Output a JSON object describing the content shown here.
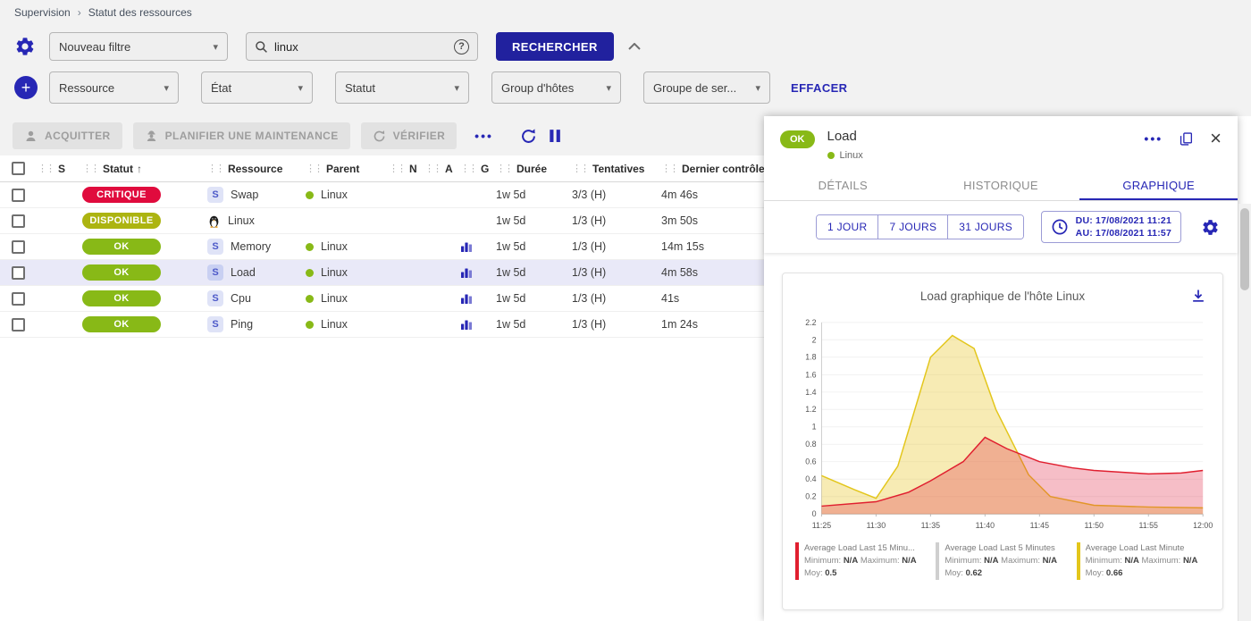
{
  "breadcrumb": {
    "items": [
      "Supervision",
      "Statut des ressources"
    ]
  },
  "filters": {
    "saved_filter": "Nouveau filtre",
    "search_value": "linux",
    "search_button": "RECHERCHER",
    "clear_label": "EFFACER",
    "criteria": [
      "Ressource",
      "État",
      "Statut",
      "Group d'hôtes",
      "Groupe de ser..."
    ]
  },
  "toolbar": {
    "acknowledge": "ACQUITTER",
    "maintenance": "PLANIFIER UNE MAINTENANCE",
    "check": "VÉRIFIER"
  },
  "table": {
    "columns": [
      "S",
      "Statut",
      "Ressource",
      "Parent",
      "N",
      "A",
      "G",
      "Durée",
      "Tentatives",
      "Dernier contrôle"
    ],
    "sorted_column": "Statut",
    "sort_direction": "asc",
    "service_chip": "S",
    "rows": [
      {
        "status": "CRITIQUE",
        "status_color": "#e00b3d",
        "type": "service",
        "resource": "Swap",
        "parent": "Linux",
        "graph": false,
        "duration": "1w 5d",
        "tries": "3/3 (H)",
        "last_check": "4m 46s",
        "selected": false
      },
      {
        "status": "DISPONIBLE",
        "status_color": "#acb411",
        "type": "host",
        "resource": "Linux",
        "parent": "",
        "graph": false,
        "duration": "1w 5d",
        "tries": "1/3 (H)",
        "last_check": "3m 50s",
        "selected": false
      },
      {
        "status": "OK",
        "status_color": "#88b917",
        "type": "service",
        "resource": "Memory",
        "parent": "Linux",
        "graph": true,
        "duration": "1w 5d",
        "tries": "1/3 (H)",
        "last_check": "14m 15s",
        "selected": false
      },
      {
        "status": "OK",
        "status_color": "#88b917",
        "type": "service",
        "resource": "Load",
        "parent": "Linux",
        "graph": true,
        "duration": "1w 5d",
        "tries": "1/3 (H)",
        "last_check": "4m 58s",
        "selected": true
      },
      {
        "status": "OK",
        "status_color": "#88b917",
        "type": "service",
        "resource": "Cpu",
        "parent": "Linux",
        "graph": true,
        "duration": "1w 5d",
        "tries": "1/3 (H)",
        "last_check": "41s",
        "selected": false
      },
      {
        "status": "OK",
        "status_color": "#88b917",
        "type": "service",
        "resource": "Ping",
        "parent": "Linux",
        "graph": true,
        "duration": "1w 5d",
        "tries": "1/3 (H)",
        "last_check": "1m 24s",
        "selected": false
      }
    ]
  },
  "detail": {
    "status": "OK",
    "title": "Load",
    "parent": "Linux",
    "tabs": [
      "DÉTAILS",
      "HISTORIQUE",
      "GRAPHIQUE"
    ],
    "active_tab": "GRAPHIQUE",
    "ranges": [
      "1 JOUR",
      "7 JOURS",
      "31 JOURS"
    ],
    "from_label": "DU: 17/08/2021 11:21",
    "to_label": "AU: 17/08/2021 11:57"
  },
  "colors": {
    "accent_blue": "#2727b5",
    "ok_green": "#88b917",
    "critical_red": "#e00b3d",
    "up_lime": "#acb411",
    "selected_row": "#e9e9f8"
  },
  "chart_data": {
    "type": "area",
    "title": "Load graphique de l'hôte Linux",
    "xlabel": "",
    "ylabel": "",
    "ylim": [
      0,
      2.2
    ],
    "y_tick_step": 0.2,
    "x_ticks": [
      "11:25",
      "11:30",
      "11:35",
      "11:40",
      "11:45",
      "11:50",
      "11:55",
      "12:00"
    ],
    "x_span_minutes": 35,
    "grid": true,
    "legend_position": "bottom",
    "legend_labels": {
      "min": "Minimum:",
      "max": "Maximum:",
      "avg": "Moy:"
    },
    "series": [
      {
        "name": "Average Load Last 15 Minutes",
        "legend_label": "Average Load Last 15 Minu...",
        "color": "#e01f2f",
        "fill": "rgba(224,40,70,0.30)",
        "minimum": "N/A",
        "maximum": "N/A",
        "average": "0.5",
        "points": [
          [
            0,
            0.09
          ],
          [
            5,
            0.14
          ],
          [
            8,
            0.25
          ],
          [
            10,
            0.38
          ],
          [
            13,
            0.6
          ],
          [
            15,
            0.88
          ],
          [
            17,
            0.75
          ],
          [
            20,
            0.6
          ],
          [
            23,
            0.53
          ],
          [
            25,
            0.5
          ],
          [
            30,
            0.46
          ],
          [
            33,
            0.47
          ],
          [
            35,
            0.5
          ]
        ]
      },
      {
        "name": "Average Load Last 5 Minutes",
        "color": "#cfcfcf",
        "fill": "rgba(207,207,207,0.3)",
        "minimum": "N/A",
        "maximum": "N/A",
        "average": "0.62",
        "points": []
      },
      {
        "name": "Average Load Last Minute",
        "color": "#e3c61b",
        "fill": "rgba(232,198,40,0.35)",
        "minimum": "N/A",
        "maximum": "N/A",
        "average": "0.66",
        "points": [
          [
            0,
            0.44
          ],
          [
            3,
            0.28
          ],
          [
            5,
            0.18
          ],
          [
            7,
            0.55
          ],
          [
            10,
            1.8
          ],
          [
            12,
            2.05
          ],
          [
            14,
            1.9
          ],
          [
            16,
            1.2
          ],
          [
            19,
            0.45
          ],
          [
            21,
            0.2
          ],
          [
            25,
            0.1
          ],
          [
            30,
            0.08
          ],
          [
            35,
            0.07
          ]
        ]
      }
    ]
  }
}
